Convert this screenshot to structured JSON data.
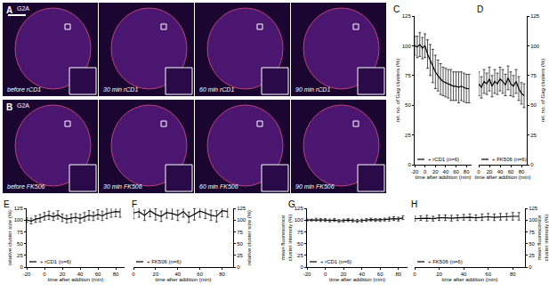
{
  "image_panels": [
    {
      "title": "A",
      "label": "G2A",
      "frames": [
        "before rCD1",
        "30 min rCD1",
        "60 min rCD1",
        "90 min rCD1"
      ]
    },
    {
      "title": "B",
      "label": "G2A",
      "frames": [
        "before FK506",
        "30 min FK506",
        "60 min FK506",
        "90 min FK506"
      ]
    }
  ],
  "chart_data": [
    {
      "type": "line",
      "title": "C",
      "x_label": "time after addition (min)",
      "y_label": "rel. no. of Gag clusters (%)",
      "xlim": [
        -20,
        90
      ],
      "xticks": [
        -20,
        0,
        20,
        40,
        60,
        80
      ],
      "ylim": [
        0,
        125
      ],
      "yticks": [
        0,
        25,
        50,
        75,
        100,
        125
      ],
      "grid": false,
      "legend": "lower left",
      "x": [
        -20,
        -15,
        -10,
        -5,
        0,
        5,
        10,
        15,
        20,
        25,
        30,
        35,
        40,
        45,
        50,
        55,
        60,
        65,
        70,
        75,
        80,
        85
      ],
      "series": [
        {
          "name": "+ rCD1 (n=6)",
          "color": "#000000",
          "line_style": "solid",
          "values": [
            100,
            99,
            101,
            98,
            100,
            93,
            88,
            83,
            78,
            75,
            72,
            70,
            69,
            68,
            67,
            66,
            66,
            65,
            66,
            65,
            64,
            64
          ],
          "error": [
            8,
            9,
            10,
            9,
            10,
            12,
            13,
            14,
            14,
            13,
            13,
            12,
            12,
            12,
            13,
            12,
            12,
            13,
            12,
            12,
            12,
            12
          ]
        }
      ]
    },
    {
      "type": "line",
      "title": "D",
      "x_label": "time after addition (min)",
      "y_label": "rel. no. of Gag clusters (%)",
      "xlim": [
        0,
        90
      ],
      "xticks": [
        0,
        20,
        40,
        60,
        80
      ],
      "ylim": [
        0,
        125
      ],
      "yticks": [
        0,
        25,
        50,
        75,
        100,
        125
      ],
      "grid": false,
      "legend": "lower left",
      "x": [
        0,
        5,
        10,
        15,
        20,
        25,
        30,
        35,
        40,
        45,
        50,
        55,
        60,
        65,
        70,
        75,
        80,
        85
      ],
      "series": [
        {
          "name": "+ FK506 (n=6)",
          "color": "#000000",
          "line_style": "solid",
          "values": [
            68,
            65,
            70,
            68,
            72,
            66,
            70,
            68,
            72,
            70,
            67,
            73,
            68,
            66,
            70,
            64,
            60,
            58
          ],
          "error": [
            10,
            9,
            10,
            9,
            10,
            9,
            10,
            9,
            10,
            10,
            9,
            10,
            10,
            9,
            10,
            10,
            9,
            10
          ]
        }
      ]
    },
    {
      "type": "line",
      "title": "E",
      "x_label": "time after addition (min)",
      "y_label": "relative cluster size (%)",
      "xlim": [
        -20,
        90
      ],
      "xticks": [
        -20,
        0,
        20,
        40,
        60,
        80
      ],
      "ylim": [
        0,
        125
      ],
      "yticks": [
        0,
        25,
        50,
        75,
        100,
        125
      ],
      "grid": false,
      "legend": "lower left",
      "x": [
        -20,
        -15,
        -10,
        -5,
        0,
        5,
        10,
        15,
        20,
        25,
        30,
        35,
        40,
        45,
        50,
        55,
        60,
        65,
        70,
        75,
        80,
        85
      ],
      "series": [
        {
          "name": "+ rCD1 (n=6)",
          "color": "#000000",
          "line_style": "solid",
          "values": [
            100,
            98,
            102,
            104,
            108,
            110,
            107,
            111,
            105,
            102,
            104,
            106,
            103,
            107,
            110,
            108,
            112,
            109,
            114,
            116,
            118,
            117
          ],
          "error": [
            5,
            6,
            7,
            8,
            8,
            9,
            8,
            9,
            8,
            8,
            9,
            8,
            9,
            9,
            10,
            9,
            10,
            10,
            11,
            10,
            11,
            11
          ]
        }
      ]
    },
    {
      "type": "line",
      "title": "F",
      "x_label": "time after addition (min)",
      "y_label": "relative cluster size (%)",
      "xlim": [
        0,
        90
      ],
      "xticks": [
        0,
        20,
        40,
        60,
        80
      ],
      "ylim": [
        0,
        125
      ],
      "yticks": [
        0,
        25,
        50,
        75,
        100,
        125
      ],
      "grid": false,
      "legend": "lower left",
      "x": [
        0,
        5,
        10,
        15,
        20,
        25,
        30,
        35,
        40,
        45,
        50,
        55,
        60,
        65,
        70,
        75,
        80,
        85
      ],
      "series": [
        {
          "name": "+ FK506 (n=6)",
          "color": "#000000",
          "line_style": "solid",
          "values": [
            115,
            118,
            110,
            120,
            112,
            108,
            116,
            114,
            110,
            118,
            106,
            112,
            119,
            115,
            110,
            108,
            120,
            118
          ],
          "error": [
            12,
            12,
            11,
            13,
            12,
            11,
            12,
            12,
            11,
            12,
            11,
            12,
            13,
            12,
            11,
            12,
            13,
            12
          ]
        }
      ]
    },
    {
      "type": "line",
      "title": "G",
      "x_label": "time after addition (min)",
      "y_label": "mean fluorescence cluster intensity (%)",
      "xlim": [
        -20,
        90
      ],
      "xticks": [
        -20,
        0,
        20,
        40,
        60,
        80
      ],
      "ylim": [
        0,
        125
      ],
      "yticks": [
        0,
        25,
        50,
        75,
        100,
        125
      ],
      "grid": false,
      "legend": "lower left",
      "x": [
        -20,
        -15,
        -10,
        -5,
        0,
        5,
        10,
        15,
        20,
        25,
        30,
        35,
        40,
        45,
        50,
        55,
        60,
        65,
        70,
        75,
        80,
        85
      ],
      "series": [
        {
          "name": "+ rCD1 (n=6)",
          "color": "#000000",
          "line_style": "solid",
          "values": [
            100,
            100,
            101,
            100,
            100,
            99,
            100,
            98,
            99,
            100,
            99,
            98,
            99,
            100,
            101,
            100,
            100,
            101,
            102,
            103,
            102,
            105
          ],
          "error": [
            2,
            2,
            3,
            3,
            3,
            3,
            3,
            3,
            3,
            3,
            3,
            3,
            3,
            3,
            3,
            3,
            3,
            3,
            4,
            4,
            4,
            4
          ]
        }
      ]
    },
    {
      "type": "line",
      "title": "H",
      "x_label": "time after addition (min)",
      "y_label": "mean fluorescence cluster intensity (%)",
      "xlim": [
        0,
        90
      ],
      "xticks": [
        0,
        20,
        40,
        60,
        80
      ],
      "ylim": [
        0,
        125
      ],
      "yticks": [
        0,
        25,
        50,
        75,
        100,
        125
      ],
      "grid": false,
      "legend": "lower left",
      "x": [
        0,
        5,
        10,
        15,
        20,
        25,
        30,
        35,
        40,
        45,
        50,
        55,
        60,
        65,
        70,
        75,
        80,
        85
      ],
      "series": [
        {
          "name": "+ FK506 (n=6)",
          "color": "#000000",
          "line_style": "solid",
          "values": [
            103,
            104,
            104,
            103,
            105,
            105,
            104,
            105,
            106,
            106,
            105,
            106,
            107,
            106,
            107,
            107,
            108,
            108
          ],
          "error": [
            5,
            5,
            6,
            5,
            6,
            6,
            6,
            6,
            6,
            7,
            6,
            7,
            7,
            7,
            7,
            7,
            8,
            8
          ]
        }
      ]
    }
  ]
}
